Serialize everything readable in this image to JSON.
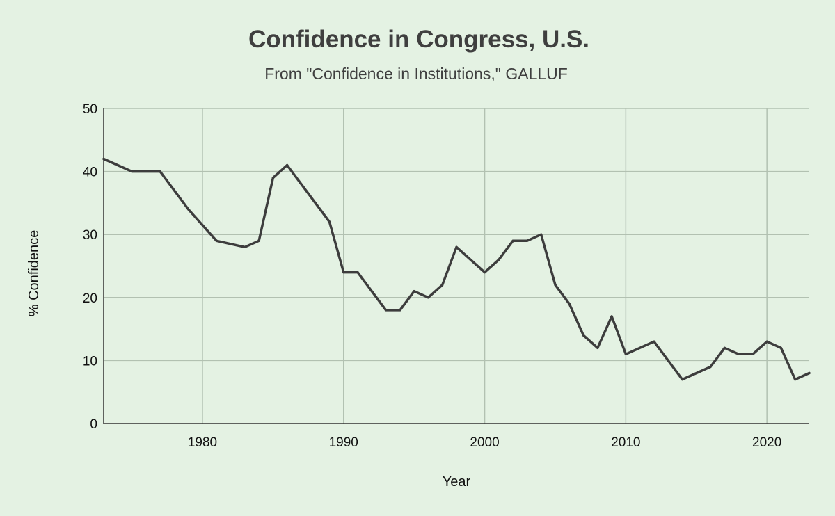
{
  "chart_data": {
    "type": "line",
    "title": "Confidence in Congress, U.S.",
    "subtitle": "From \"Confidence in Institutions,\" GALLUF",
    "xlabel": "Year",
    "ylabel": "% Confidence",
    "xlim": [
      1973,
      2023
    ],
    "ylim": [
      0,
      50
    ],
    "x_ticks": [
      1980,
      1990,
      2000,
      2010,
      2020
    ],
    "y_ticks": [
      0,
      10,
      20,
      30,
      40,
      50
    ],
    "grid": true,
    "legend": "none",
    "series": [
      {
        "color": "#3d3d3d",
        "x": [
          1973,
          1975,
          1977,
          1979,
          1981,
          1983,
          1984,
          1985,
          1986,
          1989,
          1990,
          1991,
          1993,
          1994,
          1995,
          1996,
          1997,
          1998,
          2000,
          2001,
          2002,
          2003,
          2004,
          2005,
          2006,
          2007,
          2008,
          2009,
          2010,
          2012,
          2014,
          2016,
          2017,
          2018,
          2019,
          2020,
          2021,
          2022,
          2023
        ],
        "y": [
          42,
          40,
          40,
          34,
          29,
          28,
          29,
          39,
          41,
          32,
          24,
          24,
          18,
          18,
          21,
          20,
          22,
          28,
          24,
          26,
          29,
          29,
          30,
          22,
          19,
          14,
          12,
          17,
          11,
          13,
          7,
          9,
          12,
          11,
          11,
          13,
          12,
          7,
          8
        ]
      }
    ]
  },
  "colors": {
    "background": "#e4f2e3",
    "gridline": "#b2c1b1",
    "line": "#3d3d3d",
    "title": "#3f3f3f"
  }
}
